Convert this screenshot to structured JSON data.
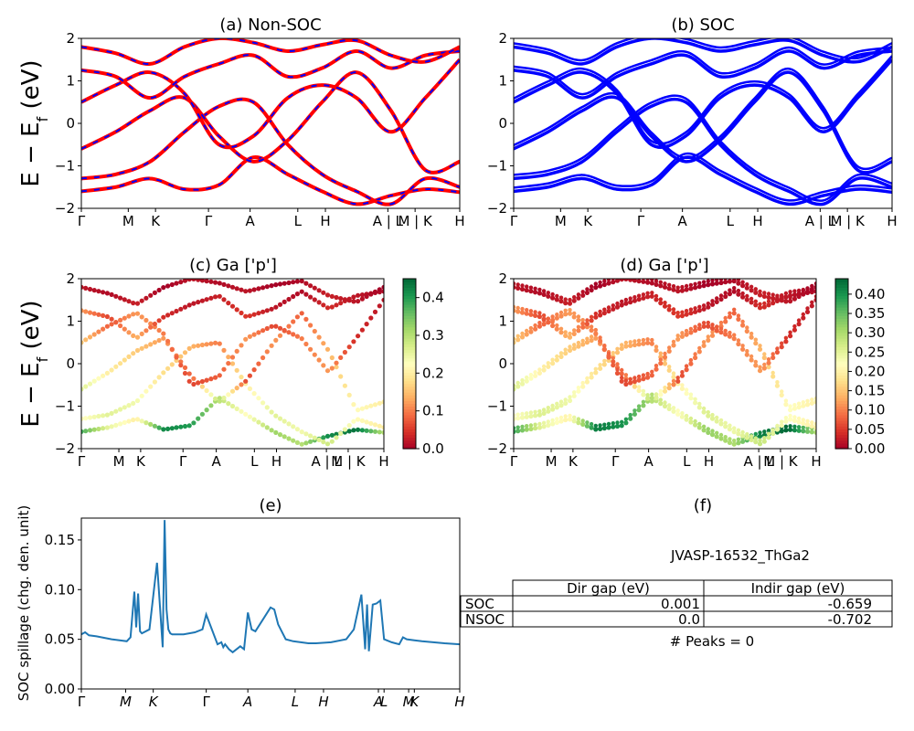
{
  "chart_data": [
    {
      "id": "a",
      "type": "line",
      "title": "(a) Non-SOC",
      "ylabel": "E − E_f (eV)",
      "ylim": [
        -2,
        2
      ],
      "yticks": [
        "−2",
        "−1",
        "0",
        "1",
        "2"
      ],
      "kpath_labels": [
        "Γ",
        "M",
        "K",
        "Γ",
        "A",
        "L",
        "H",
        "A | L",
        "M | K",
        "H"
      ],
      "colors": {
        "band": "#ff0000",
        "dash": "#0000ff"
      },
      "series": [
        {
          "y": [
            -1.6,
            -1.5,
            -1.3,
            -1.55,
            -1.45,
            -0.8,
            -1.2,
            -1.6,
            -1.9,
            -1.7,
            -1.55,
            -1.62
          ]
        },
        {
          "y": [
            -1.3,
            -1.2,
            -0.9,
            -0.2,
            0.4,
            0.5,
            -0.5,
            -1.2,
            -1.6,
            -1.9,
            -1.3,
            -1.5
          ]
        },
        {
          "y": [
            -0.6,
            -0.2,
            0.3,
            0.6,
            -0.3,
            -0.9,
            -0.4,
            0.5,
            1.2,
            0.3,
            -1.1,
            -0.9
          ]
        },
        {
          "y": [
            0.5,
            0.9,
            1.2,
            0.7,
            -0.5,
            -0.3,
            0.6,
            0.9,
            0.6,
            -0.2,
            0.6,
            1.5
          ]
        },
        {
          "y": [
            1.25,
            1.1,
            0.6,
            1.1,
            1.4,
            1.6,
            1.1,
            1.3,
            1.7,
            1.3,
            1.6,
            1.7
          ]
        },
        {
          "y": [
            1.8,
            1.65,
            1.4,
            1.8,
            2.0,
            1.9,
            1.7,
            1.85,
            1.95,
            1.6,
            1.45,
            1.8
          ]
        }
      ]
    },
    {
      "id": "b",
      "type": "line",
      "title": "(b) SOC",
      "ylim": [
        -2,
        2
      ],
      "yticks": [
        "−2",
        "−1",
        "0",
        "1",
        "2"
      ],
      "kpath_labels": [
        "Γ",
        "M",
        "K",
        "Γ",
        "A",
        "L",
        "H",
        "A | L",
        "M | K",
        "H"
      ],
      "colors": {
        "band": "#0000ff"
      },
      "series": [
        {
          "y": [
            -1.6,
            -1.5,
            -1.3,
            -1.55,
            -1.45,
            -0.8,
            -1.2,
            -1.6,
            -1.9,
            -1.7,
            -1.55,
            -1.62
          ]
        },
        {
          "y": [
            -1.3,
            -1.2,
            -0.9,
            -0.2,
            0.4,
            0.5,
            -0.5,
            -1.2,
            -1.6,
            -1.9,
            -1.3,
            -1.5
          ]
        },
        {
          "y": [
            -0.6,
            -0.2,
            0.3,
            0.6,
            -0.3,
            -0.9,
            -0.4,
            0.5,
            1.2,
            0.3,
            -1.1,
            -0.9
          ]
        },
        {
          "y": [
            0.5,
            0.9,
            1.2,
            0.7,
            -0.5,
            -0.3,
            0.6,
            0.9,
            0.6,
            -0.2,
            0.6,
            1.5
          ]
        },
        {
          "y": [
            1.25,
            1.1,
            0.6,
            1.1,
            1.4,
            1.6,
            1.1,
            1.3,
            1.7,
            1.3,
            1.6,
            1.7
          ]
        },
        {
          "y": [
            1.8,
            1.65,
            1.4,
            1.8,
            2.0,
            1.9,
            1.7,
            1.85,
            1.95,
            1.6,
            1.45,
            1.8
          ]
        }
      ]
    },
    {
      "id": "c",
      "type": "scatter",
      "title": "(c)  Ga ['p']",
      "ylabel": "E − E_f (eV)",
      "ylim": [
        -2,
        2
      ],
      "yticks": [
        "−2",
        "−1",
        "0",
        "1",
        "2"
      ],
      "kpath_labels": [
        "Γ",
        "M",
        "K",
        "Γ",
        "A",
        "L",
        "H",
        "A | L",
        "M | K",
        "H"
      ],
      "colorbar": {
        "range": [
          0,
          0.45
        ],
        "ticks": [
          "0.0",
          "0.1",
          "0.2",
          "0.3",
          "0.4"
        ],
        "cmap": "RdYlGn"
      },
      "series": [
        {
          "y": [
            -1.6,
            -1.5,
            -1.3,
            -1.55,
            -1.45,
            -0.8,
            -1.2,
            -1.6,
            -1.9,
            -1.7,
            -1.55,
            -1.62
          ],
          "c": [
            0.38,
            0.25,
            0.2,
            0.42,
            0.4,
            0.3,
            0.22,
            0.32,
            0.3,
            0.42,
            0.44,
            0.3
          ]
        },
        {
          "y": [
            -1.3,
            -1.2,
            -0.9,
            -0.2,
            0.4,
            0.5,
            -0.5,
            -1.2,
            -1.6,
            -1.9,
            -1.3,
            -1.5
          ],
          "c": [
            0.22,
            0.26,
            0.24,
            0.18,
            0.14,
            0.1,
            0.2,
            0.26,
            0.24,
            0.28,
            0.22,
            0.2
          ]
        },
        {
          "y": [
            -0.6,
            -0.2,
            0.3,
            0.6,
            -0.3,
            -0.9,
            -0.4,
            0.5,
            1.2,
            0.3,
            -1.1,
            -0.9
          ],
          "c": [
            0.26,
            0.2,
            0.16,
            0.12,
            0.08,
            0.3,
            0.06,
            0.12,
            0.08,
            0.14,
            0.22,
            0.2
          ]
        },
        {
          "y": [
            0.5,
            0.9,
            1.2,
            0.7,
            -0.5,
            -0.3,
            0.6,
            0.9,
            0.6,
            -0.2,
            0.6,
            1.5
          ],
          "c": [
            0.16,
            0.08,
            0.12,
            0.1,
            0.06,
            0.08,
            0.12,
            0.06,
            0.1,
            0.12,
            0.04,
            0.02
          ]
        },
        {
          "y": [
            1.25,
            1.1,
            0.6,
            1.1,
            1.4,
            1.6,
            1.1,
            1.3,
            1.7,
            1.3,
            1.6,
            1.7
          ],
          "c": [
            0.12,
            0.06,
            0.14,
            0.04,
            0.02,
            0.03,
            0.05,
            0.02,
            0.01,
            0.04,
            0.02,
            0.01
          ]
        },
        {
          "y": [
            1.8,
            1.65,
            1.4,
            1.8,
            2.0,
            1.9,
            1.7,
            1.85,
            1.95,
            1.6,
            1.45,
            1.8
          ],
          "c": [
            0.02,
            0.01,
            0.03,
            0.0,
            0.02,
            0.01,
            0.02,
            0.0,
            0.01,
            0.03,
            0.02,
            0.0
          ]
        }
      ]
    },
    {
      "id": "d",
      "type": "scatter",
      "title": "(d) Ga ['p']",
      "ylim": [
        -2,
        2
      ],
      "yticks": [
        "−2",
        "−1",
        "0",
        "1",
        "2"
      ],
      "kpath_labels": [
        "Γ",
        "M",
        "K",
        "Γ",
        "A",
        "L",
        "H",
        "A | L",
        "M | K",
        "H"
      ],
      "colorbar": {
        "range": [
          0,
          0.44
        ],
        "ticks": [
          "0.00",
          "0.05",
          "0.10",
          "0.15",
          "0.20",
          "0.25",
          "0.30",
          "0.35",
          "0.40"
        ],
        "cmap": "RdYlGn"
      },
      "series": [
        {
          "y": [
            -1.6,
            -1.5,
            -1.3,
            -1.55,
            -1.45,
            -0.8,
            -1.2,
            -1.6,
            -1.9,
            -1.7,
            -1.55,
            -1.62
          ],
          "c": [
            0.38,
            0.25,
            0.2,
            0.42,
            0.4,
            0.3,
            0.22,
            0.32,
            0.3,
            0.42,
            0.44,
            0.3
          ]
        },
        {
          "y": [
            -1.3,
            -1.2,
            -0.9,
            -0.2,
            0.4,
            0.5,
            -0.5,
            -1.2,
            -1.6,
            -1.9,
            -1.3,
            -1.5
          ],
          "c": [
            0.22,
            0.26,
            0.24,
            0.18,
            0.14,
            0.1,
            0.2,
            0.26,
            0.24,
            0.28,
            0.22,
            0.2
          ]
        },
        {
          "y": [
            -0.6,
            -0.2,
            0.3,
            0.6,
            -0.3,
            -0.9,
            -0.4,
            0.5,
            1.2,
            0.3,
            -1.1,
            -0.9
          ],
          "c": [
            0.26,
            0.2,
            0.16,
            0.12,
            0.08,
            0.3,
            0.06,
            0.12,
            0.08,
            0.14,
            0.22,
            0.2
          ]
        },
        {
          "y": [
            0.5,
            0.9,
            1.2,
            0.7,
            -0.5,
            -0.3,
            0.6,
            0.9,
            0.6,
            -0.2,
            0.6,
            1.5
          ],
          "c": [
            0.16,
            0.08,
            0.12,
            0.1,
            0.06,
            0.08,
            0.12,
            0.06,
            0.1,
            0.12,
            0.04,
            0.02
          ]
        },
        {
          "y": [
            1.25,
            1.1,
            0.6,
            1.1,
            1.4,
            1.6,
            1.1,
            1.3,
            1.7,
            1.3,
            1.6,
            1.7
          ],
          "c": [
            0.12,
            0.06,
            0.14,
            0.04,
            0.02,
            0.03,
            0.05,
            0.02,
            0.01,
            0.04,
            0.02,
            0.01
          ]
        },
        {
          "y": [
            1.8,
            1.65,
            1.4,
            1.8,
            2.0,
            1.9,
            1.7,
            1.85,
            1.95,
            1.6,
            1.45,
            1.8
          ],
          "c": [
            0.02,
            0.01,
            0.03,
            0.0,
            0.02,
            0.01,
            0.02,
            0.0,
            0.01,
            0.03,
            0.02,
            0.0
          ]
        }
      ]
    },
    {
      "id": "e",
      "type": "line",
      "title": "(e)",
      "ylabel": "SOC spillage (chg. den. unit)",
      "ylim": [
        0,
        0.172
      ],
      "yticks": [
        "0.00",
        "0.05",
        "0.10",
        "0.15"
      ],
      "kpath_labels": [
        "Γ",
        "M",
        "K",
        "Γ",
        "A",
        "L",
        "H",
        "A",
        "L",
        "M",
        "K",
        "H"
      ],
      "colors": {
        "line": "#1f77b4"
      },
      "series": [
        {
          "x": [
            0,
            0.01,
            0.02,
            0.04,
            0.08,
            0.12,
            0.13,
            0.14,
            0.145,
            0.15,
            0.155,
            0.16,
            0.18,
            0.2,
            0.215,
            0.22,
            0.225,
            0.23,
            0.235,
            0.24,
            0.27,
            0.3,
            0.32,
            0.33,
            0.36,
            0.37,
            0.375,
            0.38,
            0.39,
            0.4,
            0.42,
            0.43,
            0.44,
            0.45,
            0.46,
            0.48,
            0.5,
            0.51,
            0.52,
            0.54,
            0.56,
            0.58,
            0.6,
            0.62,
            0.66,
            0.7,
            0.72,
            0.74,
            0.75,
            0.755,
            0.76,
            0.77,
            0.78,
            0.79,
            0.8,
            0.82,
            0.83,
            0.84,
            0.85,
            0.86,
            0.88,
            0.9,
            0.93,
            0.96,
            1.0
          ],
          "y": [
            0.055,
            0.057,
            0.054,
            0.053,
            0.05,
            0.048,
            0.052,
            0.098,
            0.062,
            0.096,
            0.058,
            0.056,
            0.06,
            0.127,
            0.042,
            0.17,
            0.08,
            0.06,
            0.056,
            0.055,
            0.055,
            0.057,
            0.06,
            0.075,
            0.045,
            0.047,
            0.042,
            0.045,
            0.04,
            0.037,
            0.043,
            0.04,
            0.077,
            0.06,
            0.058,
            0.07,
            0.082,
            0.08,
            0.065,
            0.05,
            0.048,
            0.047,
            0.046,
            0.046,
            0.047,
            0.05,
            0.06,
            0.095,
            0.04,
            0.085,
            0.038,
            0.085,
            0.086,
            0.089,
            0.05,
            0.047,
            0.046,
            0.045,
            0.052,
            0.05,
            0.049,
            0.048,
            0.047,
            0.046,
            0.045
          ]
        }
      ]
    }
  ],
  "panel_f": {
    "title": "(f)",
    "material": "JVASP-16532_ThGa2",
    "table": {
      "headers": [
        "",
        "Dir gap (eV)",
        "Indir gap (eV)"
      ],
      "rows": [
        [
          "SOC",
          "0.001",
          "-0.659"
        ],
        [
          "NSOC",
          "0.0",
          "-0.702"
        ]
      ]
    },
    "peaks": "# Peaks = 0"
  }
}
